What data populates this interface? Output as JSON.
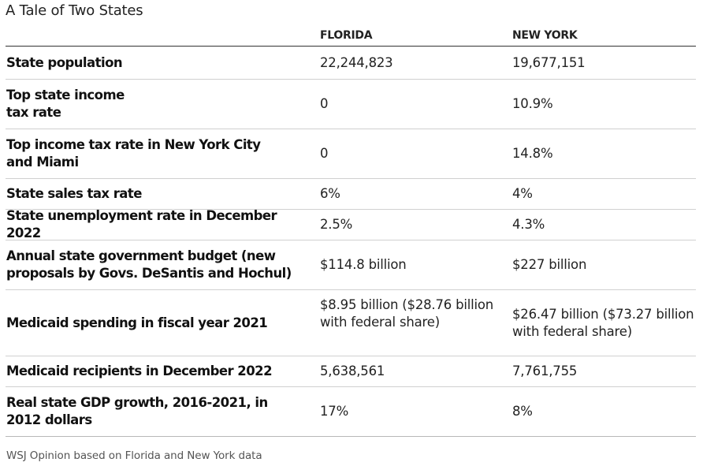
{
  "chart_data": {
    "type": "table",
    "title": "A Tale of Two States",
    "columns": [
      "",
      "FLORIDA",
      "NEW YORK"
    ],
    "rows": [
      {
        "label": "State population",
        "florida": "22,244,823",
        "new_york": "19,677,151"
      },
      {
        "label": "Top state income tax rate",
        "florida": "0",
        "new_york": "10.9%"
      },
      {
        "label": "Top income tax rate in New York City and Miami",
        "florida": "0",
        "new_york": "14.8%"
      },
      {
        "label": "State sales tax rate",
        "florida": "6%",
        "new_york": "4%"
      },
      {
        "label": "State unemployment rate in December 2022",
        "florida": "2.5%",
        "new_york": "4.3%"
      },
      {
        "label": "Annual state government budget (new proposals by Govs. DeSantis and Hochul)",
        "florida": "$114.8 billion",
        "new_york": "$227 billion"
      },
      {
        "label": "Medicaid spending in fiscal year 2021",
        "florida": "$8.95 billion ($28.76 billion with federal share)",
        "new_york": "$26.47 billion ($73.27 billion with federal share)"
      },
      {
        "label": "Medicaid recipients in December 2022",
        "florida": "5,638,561",
        "new_york": "7,761,755"
      },
      {
        "label": "Real state GDP growth, 2016-2021, in 2012 dollars",
        "florida": "17%",
        "new_york": "8%"
      }
    ],
    "source": "WSJ Opinion based on Florida and New York data"
  }
}
